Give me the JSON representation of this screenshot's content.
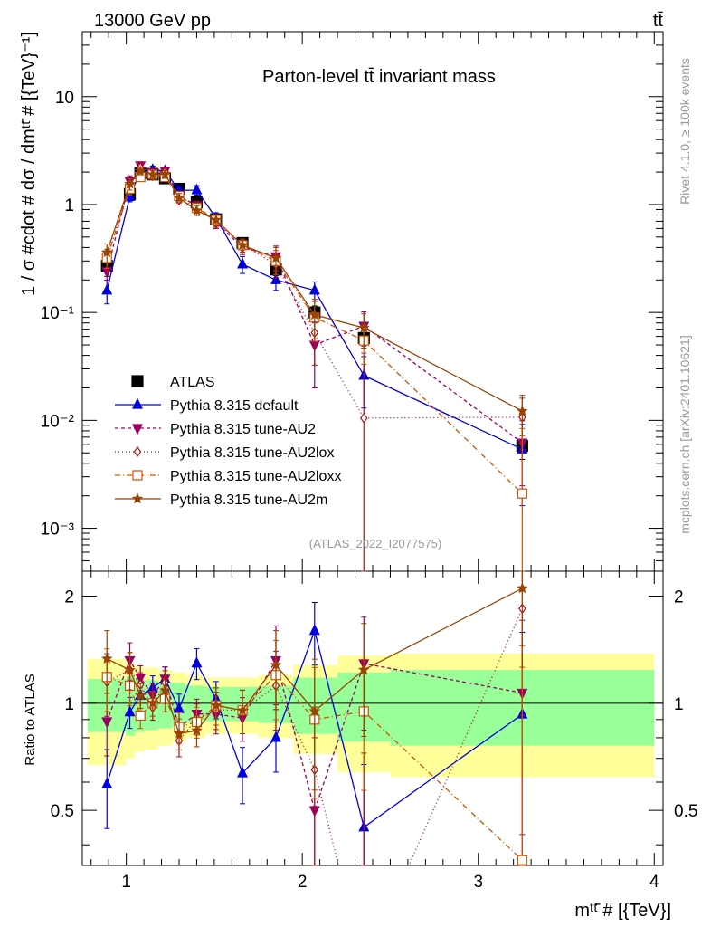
{
  "header": {
    "energy_label": "13000 GeV pp",
    "process_label": "tt̄"
  },
  "side": {
    "rivet_label": "Rivet 4.1.0, ≥ 100k events",
    "mcplots_label": "mcplots.cern.ch [arXiv:2401.10621]"
  },
  "chart_data": {
    "type": "line",
    "title": "Parton-level tt̄ invariant mass",
    "watermark": "(ATLAS_2022_I2077575)",
    "xlabel": "mᵗᵗ̄ # [{TeV}]",
    "ylabel": "1 / σ #cdot # dσ / dmᵗᵗ̄ # [{TeV}⁻¹]",
    "ratio_ylabel": "Ratio to ATLAS",
    "x_range": [
      0.75,
      4.05
    ],
    "y_range_log": [
      0.0004,
      40
    ],
    "ratio_range": [
      0.35,
      2.35
    ],
    "x_ticks": [
      "1",
      "2",
      "3",
      "4"
    ],
    "x_tick_values": [
      1,
      2,
      3,
      4
    ],
    "y_ticks": [
      "10⁻³",
      "10⁻²",
      "10⁻¹",
      "1",
      "10"
    ],
    "y_tick_values": [
      0.001,
      0.01,
      0.1,
      1,
      10
    ],
    "ratio_ticks": [
      "0.5",
      "1",
      "2"
    ],
    "ratio_tick_values": [
      0.5,
      1,
      2
    ],
    "x": [
      0.89,
      1.02,
      1.08,
      1.15,
      1.22,
      1.3,
      1.4,
      1.51,
      1.66,
      1.85,
      2.07,
      2.35,
      3.25
    ],
    "bin_edges": [
      0.78,
      1.0,
      1.05,
      1.1,
      1.18,
      1.26,
      1.34,
      1.45,
      1.58,
      1.75,
      1.95,
      2.2,
      2.5,
      4.0
    ],
    "band_green": [
      0.17,
      0.19,
      0.17,
      0.16,
      0.15,
      0.14,
      0.12,
      0.11,
      0.11,
      0.12,
      0.18,
      0.22,
      0.24,
      0.24
    ],
    "band_yellow": [
      0.33,
      0.3,
      0.27,
      0.26,
      0.24,
      0.22,
      0.2,
      0.18,
      0.18,
      0.2,
      0.28,
      0.36,
      0.38,
      0.38
    ],
    "series": [
      {
        "name": "ATLAS",
        "color": "#000000",
        "marker": "square-filled",
        "dash": "none",
        "values": [
          0.27,
          1.25,
          1.95,
          1.9,
          1.75,
          1.4,
          1.05,
          0.73,
          0.44,
          0.25,
          0.1,
          0.058,
          0.0058
        ],
        "errors": [
          0.2,
          0.15,
          0.1,
          0.08,
          0.08,
          0.09,
          0.09,
          0.08,
          0.1,
          0.12,
          0.15,
          0.2,
          0.25
        ]
      },
      {
        "name": "Pythia 8.315 default",
        "color": "#0000dd",
        "marker": "triangle-up",
        "dash": "none",
        "values": [
          0.16,
          1.18,
          2.05,
          2.1,
          2.05,
          1.35,
          1.36,
          0.75,
          0.28,
          0.2,
          0.16,
          0.026,
          0.0054
        ],
        "errors": [
          0.25,
          0.1,
          0.08,
          0.08,
          0.08,
          0.1,
          0.1,
          0.12,
          0.18,
          0.2,
          0.2,
          0.5,
          0.7
        ]
      },
      {
        "name": "Pythia 8.315 tune-AU2",
        "color": "#990066",
        "marker": "triangle-down",
        "dash": "4,3",
        "values": [
          0.24,
          1.65,
          2.3,
          2.0,
          2.05,
          1.2,
          0.98,
          0.68,
          0.4,
          0.33,
          0.05,
          0.075,
          0.0062
        ],
        "errors": [
          0.2,
          0.12,
          0.08,
          0.08,
          0.08,
          0.1,
          0.1,
          0.12,
          0.14,
          0.25,
          0.6,
          0.35,
          0.6
        ]
      },
      {
        "name": "Pythia 8.315 tune-AU2lox",
        "color": "#aa1111",
        "marker": "diamond-open",
        "dash": "1,3",
        "values": [
          0.31,
          1.55,
          2.2,
          1.85,
          2.0,
          1.1,
          0.95,
          0.7,
          0.42,
          0.28,
          0.065,
          0.0105,
          0.0107
        ],
        "errors": [
          0.2,
          0.12,
          0.08,
          0.08,
          0.08,
          0.1,
          0.1,
          0.12,
          0.14,
          0.25,
          0.5,
          3.0,
          0.5
        ]
      },
      {
        "name": "Pythia 8.315 tune-AU2loxx",
        "color": "#cc5500",
        "marker": "square-open",
        "dash": "6,3,1,3",
        "values": [
          0.32,
          1.4,
          1.8,
          1.9,
          1.8,
          1.2,
          0.93,
          0.72,
          0.42,
          0.3,
          0.09,
          0.055,
          0.0021
        ],
        "errors": [
          0.2,
          0.12,
          0.08,
          0.08,
          0.08,
          0.1,
          0.1,
          0.12,
          0.14,
          0.25,
          0.4,
          0.4,
          3.0
        ]
      },
      {
        "name": "Pythia 8.315 tune-AU2m",
        "color": "#994400",
        "marker": "star",
        "dash": "none",
        "values": [
          0.36,
          1.55,
          2.05,
          1.9,
          1.9,
          1.15,
          0.88,
          0.72,
          0.42,
          0.32,
          0.095,
          0.072,
          0.0122
        ],
        "errors": [
          0.2,
          0.12,
          0.08,
          0.08,
          0.08,
          0.1,
          0.1,
          0.12,
          0.14,
          0.25,
          0.4,
          0.35,
          0.4
        ]
      }
    ]
  }
}
